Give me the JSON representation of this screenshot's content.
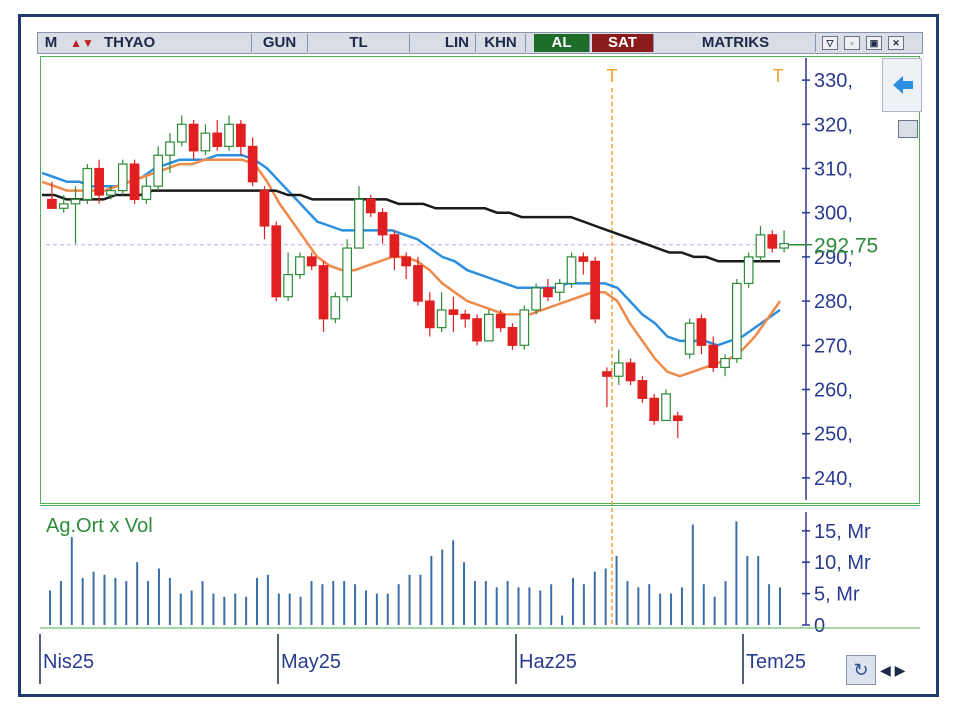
{
  "toolbar": {
    "mode": "M",
    "symbol": "THYAO",
    "period": "GUN",
    "currency": "TL",
    "scale": "LIN",
    "khn": "KHN",
    "buy": "AL",
    "sell": "SAT",
    "brand": "MATRIKS"
  },
  "colors": {
    "up": "#2e8b3a",
    "down": "#e02020",
    "ma_fast": "#f08a4b",
    "ma_mid": "#2d8fe0",
    "ma_slow": "#1a1a1a",
    "axis": "#2a3a8f",
    "last_price": "#2e8b3a",
    "volume": "#3a6ea8",
    "marker": "#f0a030"
  },
  "chart_data": [
    {
      "type": "candlestick",
      "symbol": "THYAO",
      "ylim": [
        235,
        335
      ],
      "yticks": [
        "330,",
        "320,",
        "310,",
        "300,",
        "290,",
        "280,",
        "270,",
        "260,",
        "250,",
        "240,"
      ],
      "ytick_values": [
        330,
        320,
        310,
        300,
        290,
        280,
        270,
        260,
        250,
        240
      ],
      "last_price": 292.75,
      "last_price_label": "292,75",
      "x_labels": [
        "Nis25",
        "May25",
        "Haz25",
        "Tem25"
      ],
      "marker_label": "T",
      "candles": [
        [
          303,
          307,
          301,
          301
        ],
        [
          301,
          304,
          300,
          302
        ],
        [
          302,
          306,
          293,
          303
        ],
        [
          303,
          311,
          302,
          310
        ],
        [
          310,
          312,
          302,
          304
        ],
        [
          304,
          306,
          303,
          305
        ],
        [
          305,
          312,
          304,
          311
        ],
        [
          311,
          312,
          302,
          303
        ],
        [
          303,
          308,
          302,
          306
        ],
        [
          306,
          315,
          305,
          313
        ],
        [
          313,
          318,
          309,
          316
        ],
        [
          316,
          322,
          315,
          320
        ],
        [
          320,
          321,
          312,
          314
        ],
        [
          314,
          320,
          313,
          318
        ],
        [
          318,
          321,
          314,
          315
        ],
        [
          315,
          322,
          314,
          320
        ],
        [
          320,
          321,
          313,
          315
        ],
        [
          315,
          317,
          306,
          307
        ],
        [
          305,
          306,
          294,
          297
        ],
        [
          297,
          298,
          280,
          281
        ],
        [
          281,
          291,
          280,
          286
        ],
        [
          286,
          291,
          285,
          290
        ],
        [
          290,
          291,
          287,
          288
        ],
        [
          288,
          289,
          273,
          276
        ],
        [
          276,
          282,
          275,
          281
        ],
        [
          281,
          294,
          280,
          292
        ],
        [
          292,
          306,
          292,
          303
        ],
        [
          303,
          304,
          299,
          300
        ],
        [
          300,
          301,
          293,
          295
        ],
        [
          295,
          296,
          287,
          290
        ],
        [
          290,
          291,
          285,
          288
        ],
        [
          288,
          290,
          279,
          280
        ],
        [
          280,
          282,
          272,
          274
        ],
        [
          274,
          282,
          273,
          278
        ],
        [
          278,
          281,
          273,
          277
        ],
        [
          277,
          278,
          274,
          276
        ],
        [
          276,
          277,
          270,
          271
        ],
        [
          271,
          278,
          271,
          277
        ],
        [
          277,
          278,
          273,
          274
        ],
        [
          274,
          275,
          269,
          270
        ],
        [
          270,
          279,
          269,
          278
        ],
        [
          278,
          284,
          277,
          283
        ],
        [
          283,
          285,
          280,
          281
        ],
        [
          282,
          285,
          280,
          284
        ],
        [
          284,
          291,
          283,
          290
        ],
        [
          290,
          291,
          286,
          289
        ],
        [
          289,
          290,
          275,
          276
        ],
        [
          264,
          265,
          256,
          263
        ],
        [
          263,
          269,
          261,
          266
        ],
        [
          266,
          267,
          261,
          262
        ],
        [
          262,
          263,
          257,
          258
        ],
        [
          258,
          259,
          252,
          253
        ],
        [
          253,
          260,
          253,
          259
        ],
        [
          254,
          255,
          249,
          253
        ],
        [
          268,
          276,
          267,
          275
        ],
        [
          276,
          277,
          268,
          270
        ],
        [
          270,
          272,
          264,
          265
        ],
        [
          265,
          268,
          263,
          267
        ],
        [
          267,
          285,
          266,
          284
        ],
        [
          284,
          291,
          283,
          290
        ],
        [
          290,
          297,
          289,
          295
        ],
        [
          295,
          296,
          291,
          292
        ],
        [
          292,
          296,
          291,
          293
        ]
      ],
      "series": [
        {
          "name": "",
          "values": [
            309,
            308,
            307,
            307,
            306,
            306,
            306,
            307,
            308,
            310,
            311,
            312,
            312,
            312,
            313,
            313,
            313,
            312,
            310,
            307,
            304,
            301,
            298,
            297,
            296,
            296,
            296,
            296,
            296,
            295,
            294,
            292,
            290,
            289,
            287,
            286,
            285,
            284,
            283,
            283,
            283,
            283,
            284,
            284,
            284,
            284,
            283,
            280,
            277,
            275,
            272,
            271,
            271,
            271,
            270,
            271,
            272,
            274,
            276,
            278
          ]
        },
        {
          "name": "",
          "values": [
            307,
            306,
            305,
            305,
            305,
            305,
            306,
            307,
            308,
            309,
            310,
            311,
            311,
            312,
            312,
            312,
            312,
            311,
            307,
            302,
            298,
            294,
            290,
            288,
            287,
            287,
            288,
            289,
            290,
            290,
            289,
            287,
            284,
            282,
            280,
            279,
            278,
            277,
            277,
            277,
            278,
            279,
            280,
            281,
            282,
            282,
            280,
            275,
            271,
            267,
            264,
            263,
            264,
            265,
            266,
            267,
            269,
            272,
            276,
            280
          ]
        },
        {
          "name": "",
          "values": [
            304,
            304,
            303,
            303,
            303,
            303,
            304,
            304,
            304,
            305,
            305,
            305,
            305,
            305,
            305,
            305,
            305,
            305,
            305,
            305,
            304,
            304,
            303,
            303,
            303,
            303,
            303,
            303,
            303,
            302,
            302,
            302,
            301,
            301,
            301,
            301,
            301,
            300,
            300,
            299,
            299,
            299,
            299,
            299,
            298,
            297,
            296,
            295,
            294,
            293,
            292,
            291,
            291,
            290,
            290,
            289,
            289,
            289,
            289,
            289,
            289
          ]
        }
      ]
    },
    {
      "type": "bar",
      "title": "Ag.Ort x Vol",
      "ylim": [
        0,
        18
      ],
      "yticks": [
        "15, Mr",
        "10, Mr",
        "5, Mr",
        "0"
      ],
      "ytick_values": [
        15,
        10,
        5,
        0
      ],
      "values": [
        5.5,
        7,
        14,
        7.5,
        8.5,
        8,
        7.5,
        7,
        10,
        7,
        9,
        7.5,
        5,
        5.5,
        7,
        5,
        4.5,
        5,
        4.5,
        7.5,
        8,
        5,
        5,
        4.5,
        7,
        6.5,
        7,
        7,
        6.5,
        5.5,
        5,
        5,
        6.5,
        8,
        8,
        11,
        12,
        13.5,
        10,
        7,
        7,
        6,
        7,
        6,
        6,
        5.5,
        6.5,
        1.5,
        7.5,
        6.5,
        8.5,
        9,
        11,
        7,
        6,
        6.5,
        5,
        5,
        6,
        16,
        6.5,
        4.5,
        7,
        16.5,
        11,
        11,
        6.5,
        6
      ]
    }
  ]
}
